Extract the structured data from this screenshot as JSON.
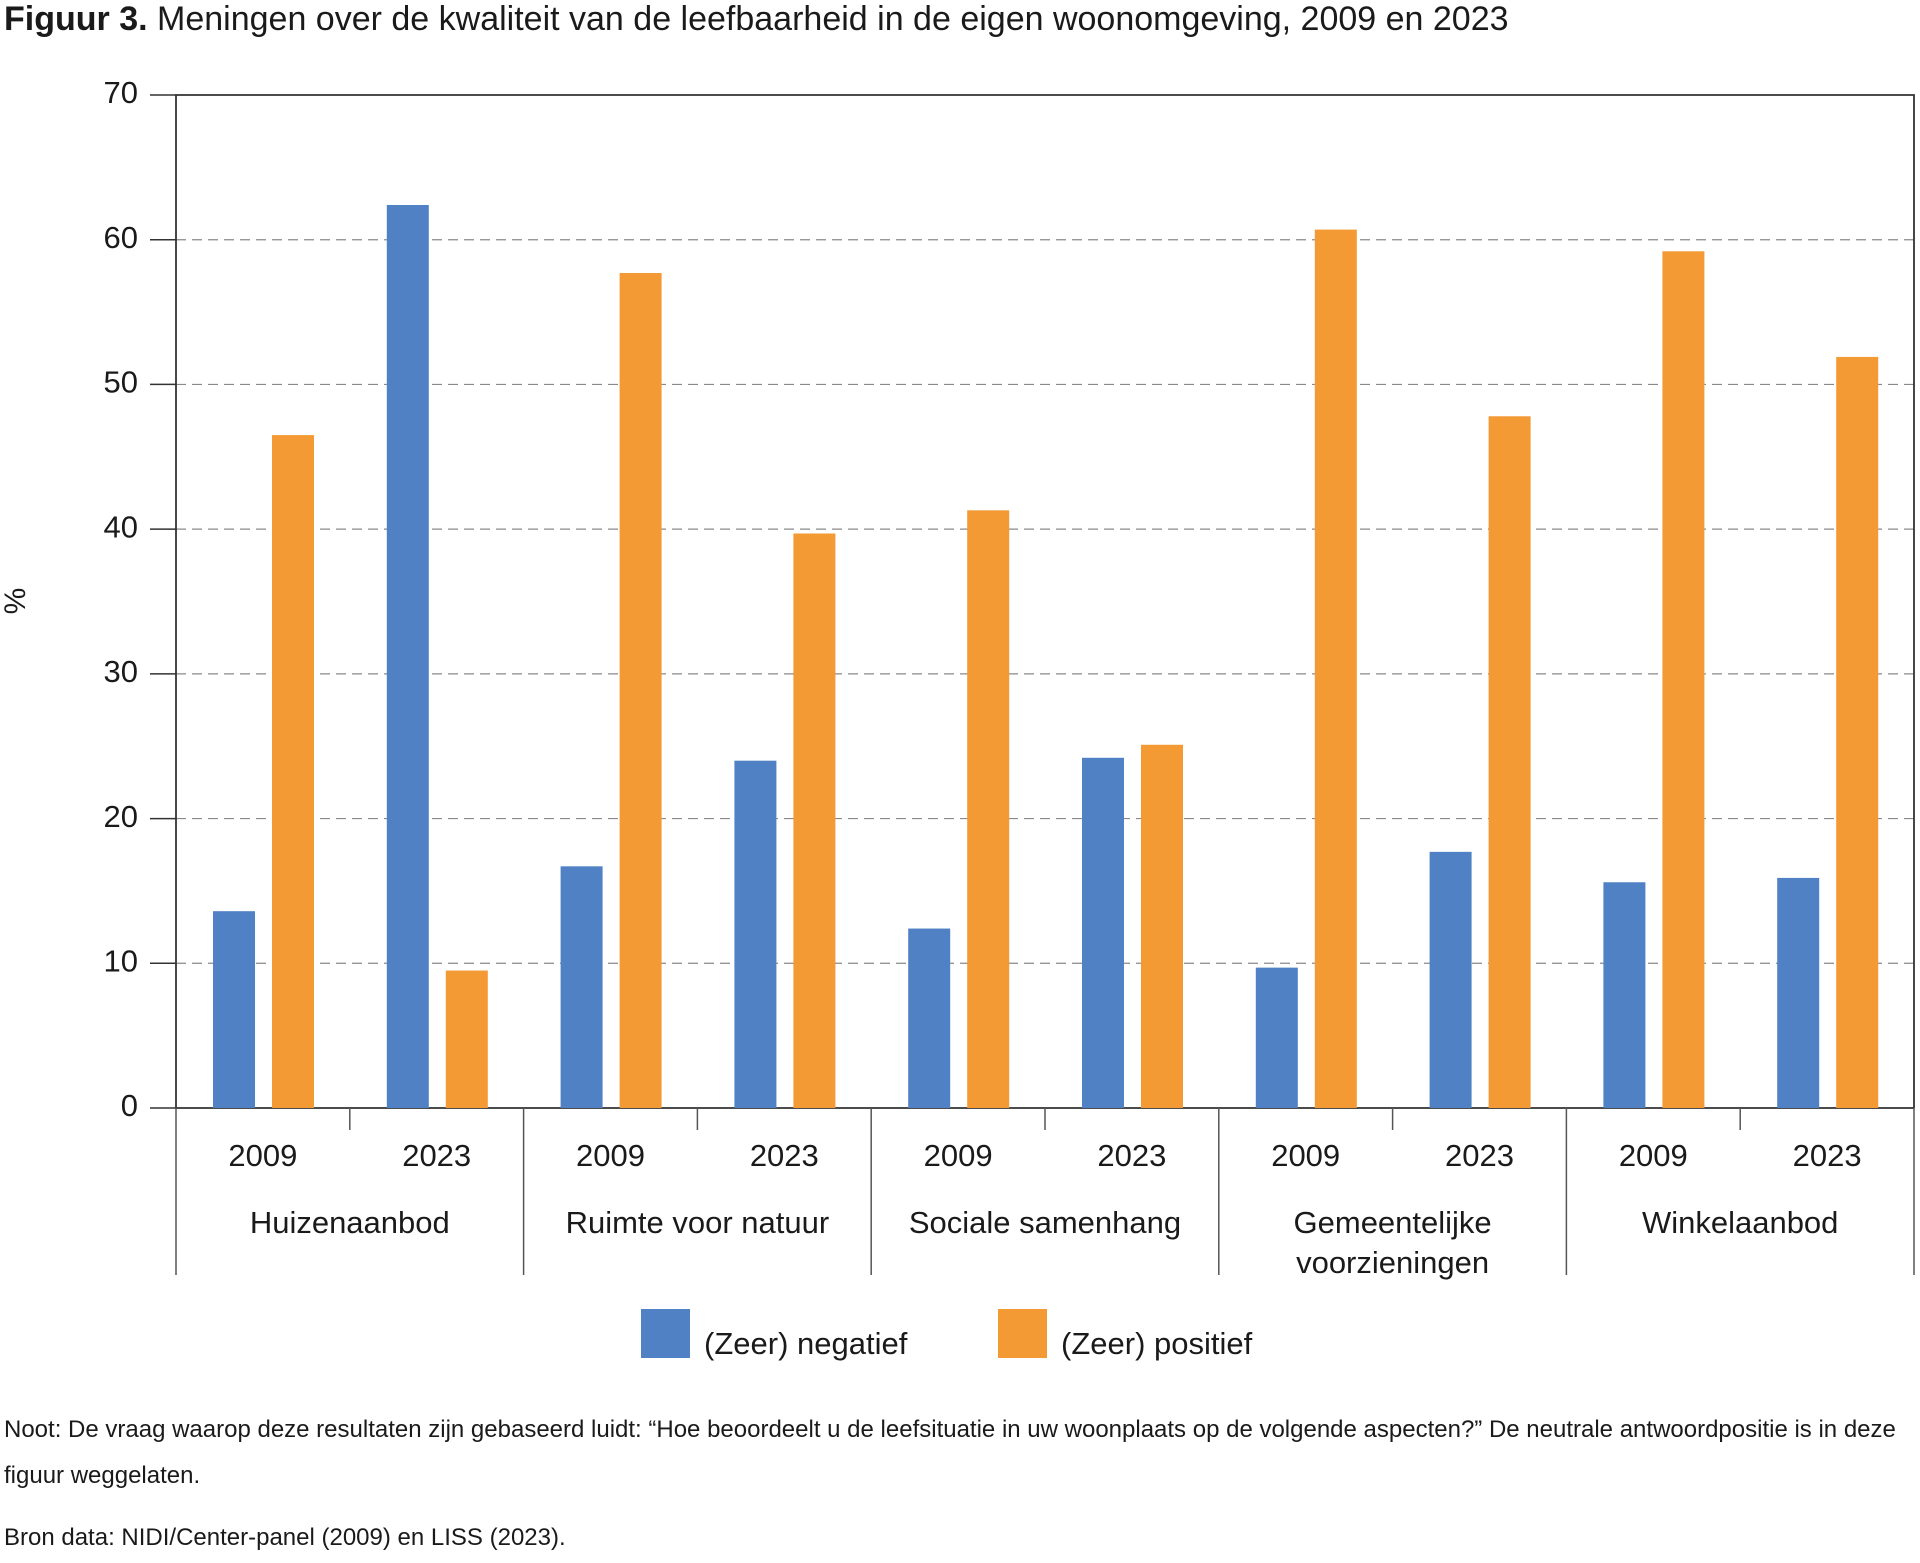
{
  "chart_data": {
    "type": "bar",
    "title_label": "Figuur 3.",
    "title": "Meningen over de kwaliteit van de leefbaarheid in de eigen woonomgeving, 2009 en 2023",
    "y_label": "%",
    "categories": [
      "2009",
      "2023",
      "2009",
      "2023",
      "2009",
      "2023",
      "2009",
      "2023",
      "2009",
      "2023"
    ],
    "groups": [
      "Huizenaanbod",
      "Ruimte voor natuur",
      "Sociale samenhang",
      "Gemeentelijke voorzieningen",
      "Winkelaanbod"
    ],
    "series": [
      {
        "name": "(Zeer) negatief",
        "color": "#4f81c4",
        "values": [
          13.6,
          62.4,
          16.7,
          24.0,
          12.4,
          24.2,
          9.7,
          17.7,
          15.6,
          15.9
        ]
      },
      {
        "name": "(Zeer) positief",
        "color": "#f39a35",
        "values": [
          46.5,
          9.5,
          57.7,
          39.7,
          41.3,
          25.1,
          60.7,
          47.8,
          59.2,
          51.9
        ]
      }
    ],
    "ylim": [
      0,
      70
    ],
    "yticks": [
      0,
      10,
      20,
      30,
      40,
      50,
      60,
      70
    ],
    "grid": true,
    "note": "Noot: De vraag waarop deze resultaten zijn gebaseerd luidt: “Hoe beoordeelt u de leefsituatie in uw woonplaats op de volgende aspecten?” De neutrale antwoordpositie is in deze figuur weggelaten.",
    "source": "Bron data: NIDI/Center-panel (2009) en LISS (2023)."
  }
}
